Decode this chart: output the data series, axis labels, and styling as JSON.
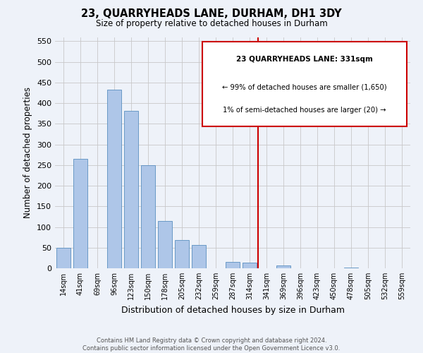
{
  "title": "23, QUARRYHEADS LANE, DURHAM, DH1 3DY",
  "subtitle": "Size of property relative to detached houses in Durham",
  "xlabel": "Distribution of detached houses by size in Durham",
  "ylabel": "Number of detached properties",
  "bar_labels": [
    "14sqm",
    "41sqm",
    "69sqm",
    "96sqm",
    "123sqm",
    "150sqm",
    "178sqm",
    "205sqm",
    "232sqm",
    "259sqm",
    "287sqm",
    "314sqm",
    "341sqm",
    "369sqm",
    "396sqm",
    "423sqm",
    "450sqm",
    "478sqm",
    "505sqm",
    "532sqm",
    "559sqm"
  ],
  "bar_values": [
    50,
    265,
    0,
    432,
    382,
    250,
    115,
    68,
    57,
    0,
    15,
    14,
    0,
    6,
    0,
    0,
    0,
    1,
    0,
    0,
    0
  ],
  "bar_color": "#aec6e8",
  "bar_edge_color": "#5a8fc0",
  "vline_color": "#cc0000",
  "vline_x": 11.5,
  "annotation_line1": "23 QUARRYHEADS LANE: 331sqm",
  "annotation_line2": "← 99% of detached houses are smaller (1,650)",
  "annotation_line3": "1% of semi-detached houses are larger (20) →",
  "bg_color": "#eef2f9",
  "grid_color": "#c8c8c8",
  "footer_line1": "Contains HM Land Registry data © Crown copyright and database right 2024.",
  "footer_line2": "Contains public sector information licensed under the Open Government Licence v3.0.",
  "ylim": [
    0,
    560
  ],
  "yticks": [
    0,
    50,
    100,
    150,
    200,
    250,
    300,
    350,
    400,
    450,
    500,
    550
  ]
}
